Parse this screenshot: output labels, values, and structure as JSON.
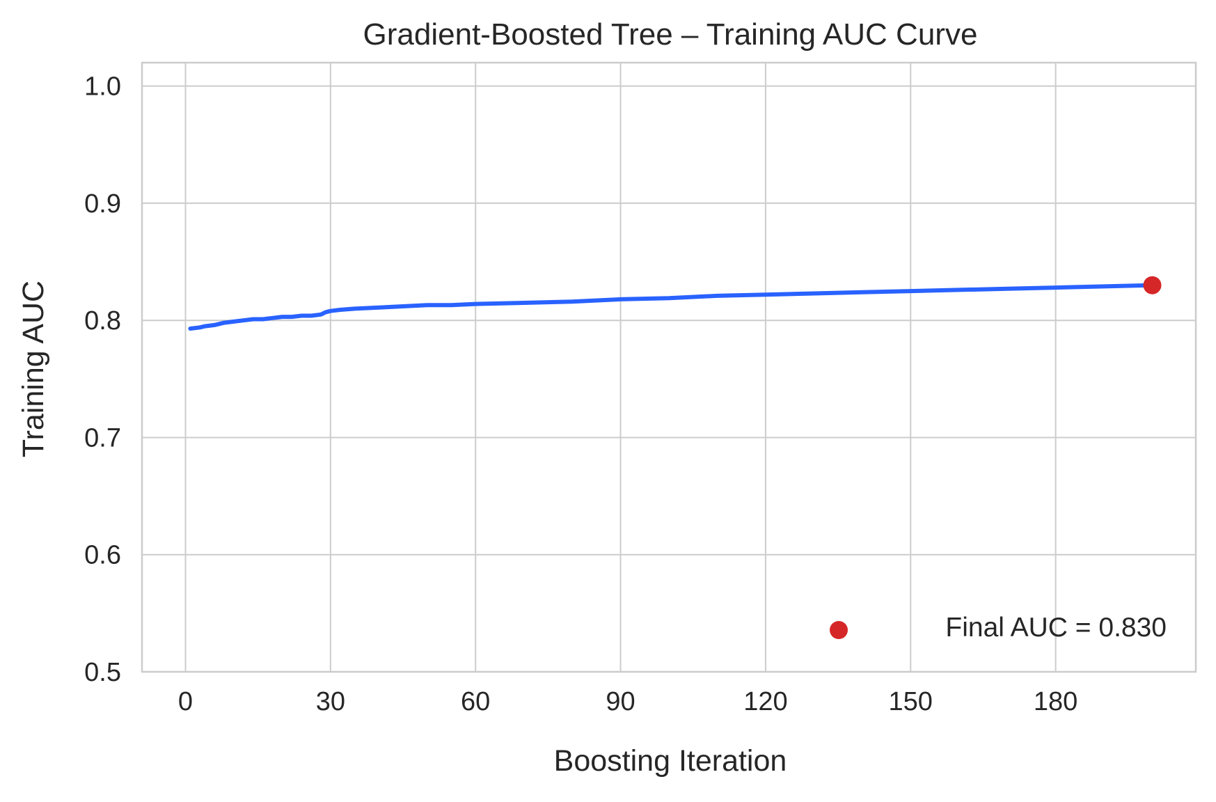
{
  "chart_data": {
    "type": "line",
    "title": "Gradient-Boosted Tree – Training AUC Curve",
    "xlabel": "Boosting Iteration",
    "ylabel": "Training AUC",
    "xlim": [
      -9,
      209
    ],
    "ylim": [
      0.5,
      1.02
    ],
    "xticks": [
      0,
      30,
      60,
      90,
      120,
      150,
      180
    ],
    "yticks": [
      0.5,
      0.6,
      0.7,
      0.8,
      0.9,
      1.0
    ],
    "xtick_labels": [
      "0",
      "30",
      "60",
      "90",
      "120",
      "150",
      "180"
    ],
    "ytick_labels": [
      "0.5",
      "0.6",
      "0.7",
      "0.8",
      "0.9",
      "1.0"
    ],
    "grid": true,
    "legend_position": "lower-right",
    "series": [
      {
        "color": "#2962ff",
        "x": [
          1,
          3,
          4,
          6,
          8,
          10,
          12,
          14,
          16,
          18,
          20,
          22,
          24,
          26,
          28,
          29,
          30,
          32,
          35,
          40,
          45,
          50,
          55,
          60,
          70,
          80,
          90,
          100,
          110,
          120,
          130,
          140,
          150,
          160,
          170,
          180,
          190,
          200
        ],
        "y": [
          0.793,
          0.794,
          0.795,
          0.796,
          0.798,
          0.799,
          0.8,
          0.801,
          0.801,
          0.802,
          0.803,
          0.803,
          0.804,
          0.804,
          0.805,
          0.807,
          0.808,
          0.809,
          0.81,
          0.811,
          0.812,
          0.813,
          0.813,
          0.814,
          0.815,
          0.816,
          0.818,
          0.819,
          0.821,
          0.822,
          0.823,
          0.824,
          0.825,
          0.826,
          0.827,
          0.828,
          0.829,
          0.83
        ]
      }
    ],
    "final_point": {
      "x": 200,
      "y": 0.83,
      "color": "#d62728",
      "label": "Final AUC = 0.830"
    }
  }
}
